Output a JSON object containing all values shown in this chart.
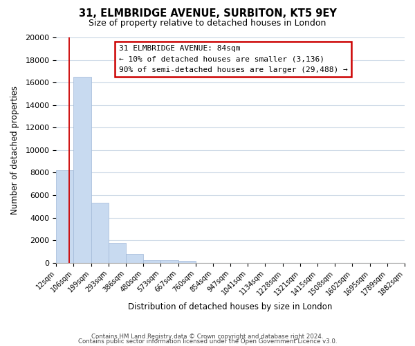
{
  "title": "31, ELMBRIDGE AVENUE, SURBITON, KT5 9EY",
  "subtitle": "Size of property relative to detached houses in London",
  "xlabel": "Distribution of detached houses by size in London",
  "ylabel": "Number of detached properties",
  "bar_values": [
    8200,
    16500,
    5300,
    1750,
    750,
    250,
    200,
    150,
    0,
    0,
    0,
    0,
    0,
    0,
    0,
    0,
    0,
    0,
    0,
    0
  ],
  "bar_labels": [
    "12sqm",
    "106sqm",
    "199sqm",
    "293sqm",
    "386sqm",
    "480sqm",
    "573sqm",
    "667sqm",
    "760sqm",
    "854sqm",
    "947sqm",
    "1041sqm",
    "1134sqm",
    "1228sqm",
    "1321sqm",
    "1415sqm",
    "1508sqm",
    "1602sqm",
    "1695sqm",
    "1789sqm",
    "1882sqm"
  ],
  "bar_color": "#c8daf0",
  "bar_edge_color": "#a0b8d8",
  "annotation_title": "31 ELMBRIDGE AVENUE: 84sqm",
  "annotation_line1": "← 10% of detached houses are smaller (3,136)",
  "annotation_line2": "90% of semi-detached houses are larger (29,488) →",
  "annotation_box_color": "#ffffff",
  "annotation_box_edge": "#cc0000",
  "marker_line_color": "#cc0000",
  "ylim": [
    0,
    20000
  ],
  "yticks": [
    0,
    2000,
    4000,
    6000,
    8000,
    10000,
    12000,
    14000,
    16000,
    18000,
    20000
  ],
  "footer_line1": "Contains HM Land Registry data © Crown copyright and database right 2024.",
  "footer_line2": "Contains public sector information licensed under the Open Government Licence v3.0.",
  "background_color": "#ffffff",
  "grid_color": "#d0dce8"
}
